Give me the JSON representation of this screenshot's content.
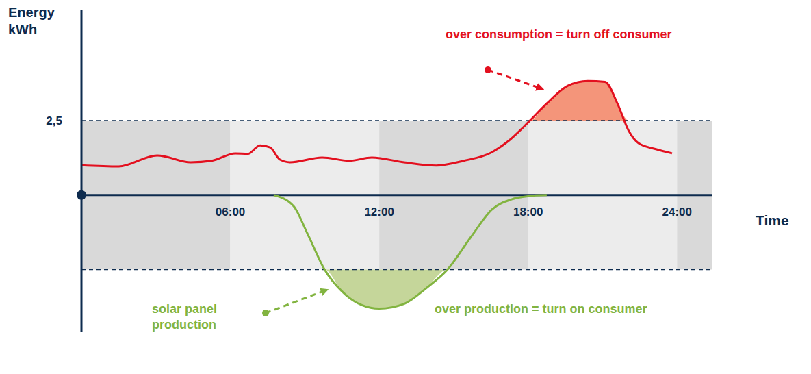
{
  "chart_data": {
    "type": "line",
    "y_label": "Energy kWh",
    "x_label": "Time",
    "xlim": [
      0,
      25.4
    ],
    "ylim": [
      -4.6,
      6.2
    ],
    "xticks": [
      {
        "value": 6,
        "label": "06:00"
      },
      {
        "value": 12,
        "label": "12:00"
      },
      {
        "value": 18,
        "label": "18:00"
      },
      {
        "value": 24,
        "label": "24:00"
      }
    ],
    "yticks": [
      {
        "value": 2.5,
        "label": "2,5"
      }
    ],
    "thresholds": [
      2.5,
      -2.5
    ],
    "series": [
      {
        "color": "#e3101f",
        "x": [
          0,
          1.5,
          3.05,
          4.4,
          5.25,
          6.2,
          6.7,
          7.2,
          7.6,
          8.0,
          8.4,
          9.7,
          10.8,
          11.7,
          13.0,
          14.3,
          15.4,
          16.5,
          17.2,
          18.05,
          18.75,
          19.6,
          20.4,
          21.1,
          21.6,
          22.05,
          22.45,
          23.15,
          23.8
        ],
        "values": [
          1.0,
          0.96,
          1.33,
          1.1,
          1.15,
          1.4,
          1.38,
          1.67,
          1.6,
          1.19,
          1.1,
          1.26,
          1.15,
          1.26,
          1.1,
          0.99,
          1.15,
          1.42,
          1.81,
          2.48,
          3.07,
          3.67,
          3.83,
          3.8,
          3.07,
          2.16,
          1.74,
          1.54,
          1.4
        ]
      },
      {
        "color": "#82b440",
        "x": [
          7.75,
          8.55,
          9.1,
          9.8,
          10.5,
          11.3,
          12.0,
          13.0,
          13.9,
          14.75,
          15.7,
          16.55,
          17.35,
          18.2,
          18.75
        ],
        "values": [
          0,
          -0.37,
          -1.28,
          -2.5,
          -3.23,
          -3.69,
          -3.81,
          -3.65,
          -3.12,
          -2.5,
          -1.4,
          -0.48,
          -0.14,
          -0.02,
          0
        ]
      }
    ],
    "annotations": [
      {
        "text": "over consumption = turn off consumer",
        "color": "#e3101f"
      },
      {
        "text": "over production = turn on consumer",
        "color": "#82b440"
      },
      {
        "text": "solar panel production",
        "color": "#82b440"
      }
    ]
  }
}
